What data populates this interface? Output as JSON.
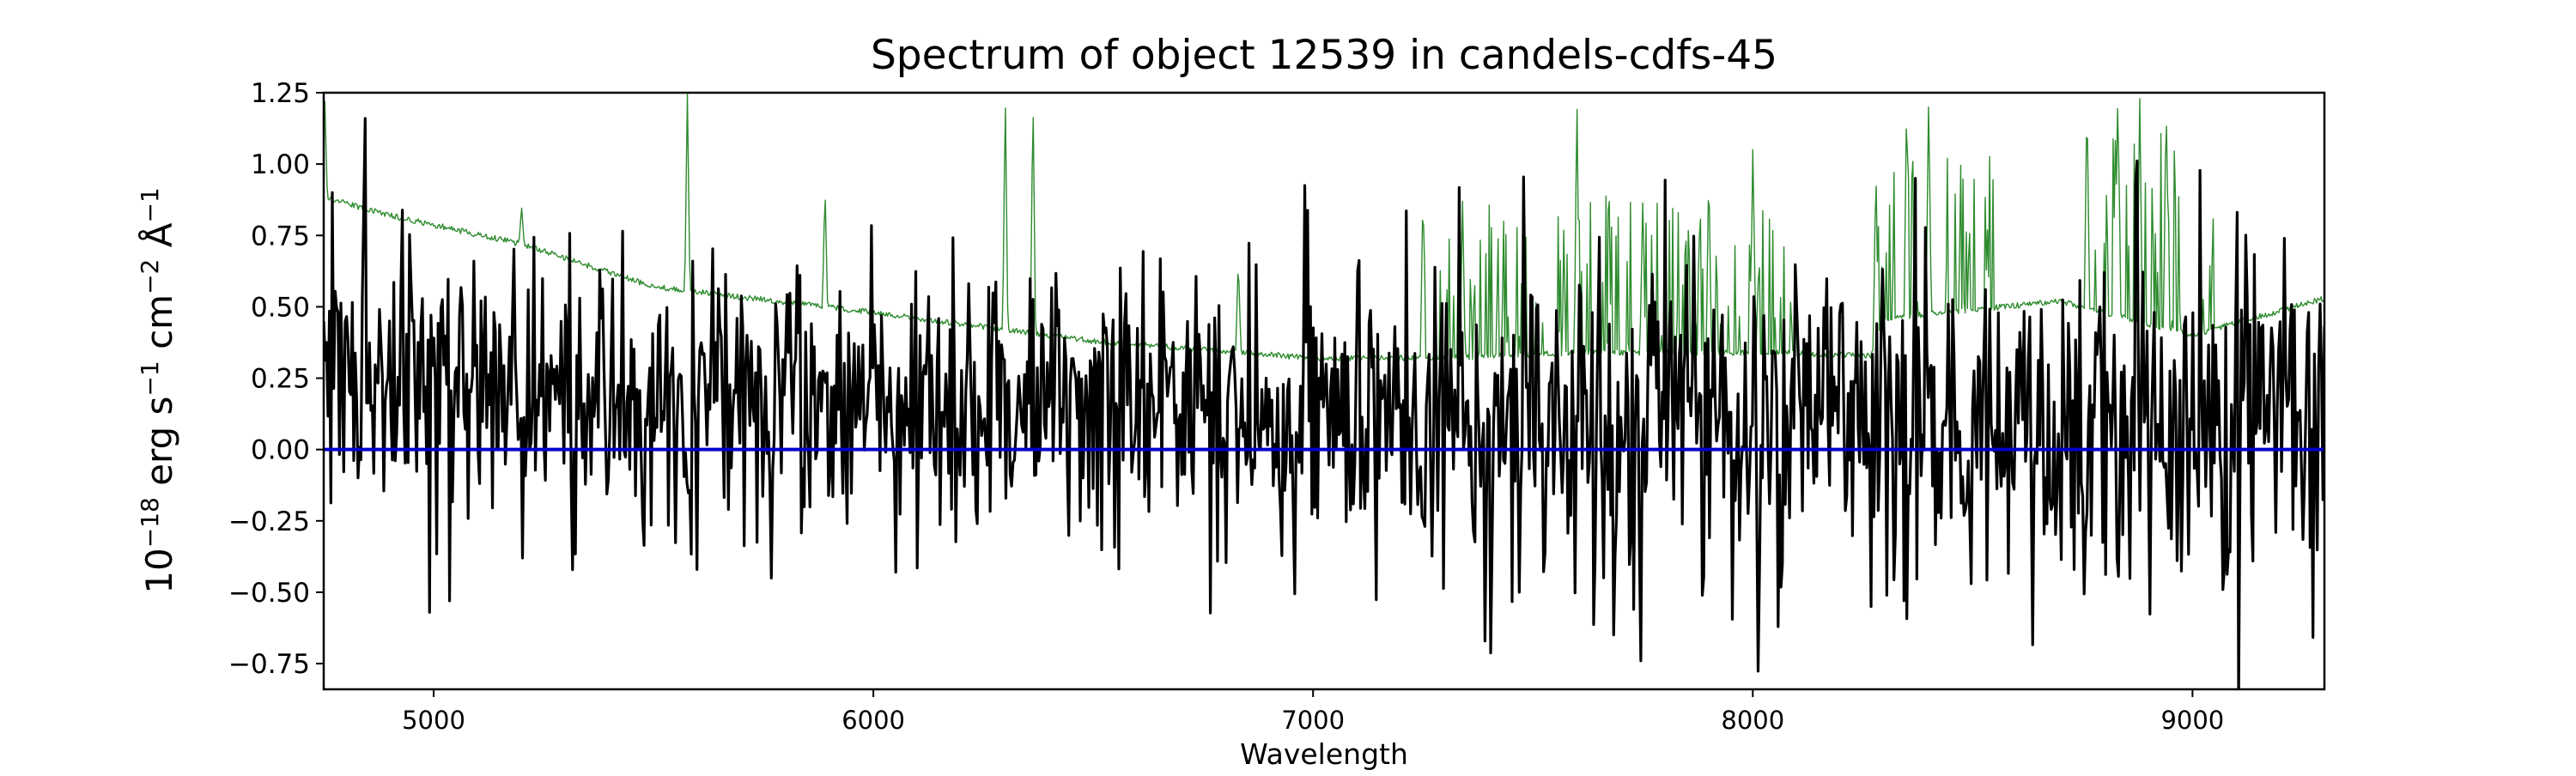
{
  "chart_data": {
    "type": "line",
    "title": "Spectrum of object 12539 in candels-cdfs-45",
    "xlabel": "Wavelength",
    "ylabel_parts": {
      "base": "10",
      "exp": "−18",
      "unit1": " erg s",
      "exp1": "−1",
      "unit2": " cm",
      "exp2": "−2",
      "unit3": " Å",
      "exp3": "−1"
    },
    "xlim": [
      4750,
      9300
    ],
    "ylim": [
      -0.84,
      1.25
    ],
    "x_ticks": [
      5000,
      6000,
      7000,
      8000,
      9000
    ],
    "y_ticks": [
      -0.75,
      -0.5,
      -0.25,
      0.0,
      0.25,
      0.5,
      0.75,
      1.0,
      1.25
    ],
    "x_tick_labels": [
      "5000",
      "6000",
      "7000",
      "8000",
      "9000"
    ],
    "y_tick_labels": [
      "−0.75",
      "−0.50",
      "−0.25",
      "0.00",
      "0.25",
      "0.50",
      "0.75",
      "1.00",
      "1.25"
    ],
    "grid": false,
    "legend": "none",
    "series": [
      {
        "role": "flux",
        "color": "#000000",
        "x_range": [
          4750,
          9300
        ],
        "n_points": 1400,
        "seed": 12539,
        "noise_amplitude": 0.2,
        "noise_red_extra": 0.14,
        "notable_points": [
          [
            4770,
            0.9
          ],
          [
            4840,
            0.85
          ],
          [
            4845,
            1.16
          ],
          [
            4990,
            -0.57
          ],
          [
            5035,
            -0.53
          ],
          [
            5090,
            0.66
          ],
          [
            5590,
            0.66
          ],
          [
            5600,
            -0.42
          ],
          [
            6050,
            -0.43
          ],
          [
            7470,
            -0.5
          ],
          [
            7730,
            -0.56
          ],
          [
            7745,
            -0.74
          ],
          [
            8270,
            -0.55
          ],
          [
            8370,
            0.95
          ],
          [
            8870,
            0.93
          ],
          [
            9210,
            0.74
          ],
          [
            9230,
            -0.28
          ],
          [
            9290,
            0.51
          ]
        ]
      },
      {
        "role": "error",
        "color": "#2e8b2e",
        "x_range": [
          4750,
          9300
        ],
        "n_points": 1800,
        "seed": 45,
        "baseline_knots": [
          [
            4750,
            0.9
          ],
          [
            4760,
            0.88
          ],
          [
            4900,
            0.82
          ],
          [
            5200,
            0.72
          ],
          [
            5500,
            0.57
          ],
          [
            6000,
            0.48
          ],
          [
            6500,
            0.38
          ],
          [
            7000,
            0.32
          ],
          [
            7300,
            0.32
          ],
          [
            7600,
            0.34
          ],
          [
            8000,
            0.34
          ],
          [
            8270,
            0.33
          ],
          [
            8300,
            0.46
          ],
          [
            8700,
            0.52
          ],
          [
            9000,
            0.4
          ],
          [
            9300,
            0.53
          ]
        ],
        "spikes": [
          [
            4752,
            1.25
          ],
          [
            5200,
            0.85
          ],
          [
            5577,
            1.25
          ],
          [
            5890,
            0.92
          ],
          [
            6300,
            1.25
          ],
          [
            6363,
            1.25
          ],
          [
            6830,
            0.67
          ],
          [
            7250,
            0.92
          ],
          [
            7340,
            0.88
          ],
          [
            7600,
            1.25
          ],
          [
            7750,
            0.9
          ],
          [
            7900,
            1.0
          ],
          [
            8000,
            1.05
          ],
          [
            8280,
            1.0
          ],
          [
            8350,
            1.25
          ],
          [
            8400,
            1.25
          ],
          [
            8760,
            1.25
          ],
          [
            8830,
            1.25
          ],
          [
            8880,
            1.25
          ],
          [
            8940,
            1.25
          ]
        ],
        "forest_ranges": [
          [
            7250,
            8100,
            0.55
          ],
          [
            8280,
            8550,
            0.55
          ],
          [
            8750,
            9050,
            0.7
          ]
        ]
      },
      {
        "role": "zero",
        "color": "#0000cc",
        "values": [
          [
            4750,
            0.0
          ],
          [
            9300,
            0.0
          ]
        ]
      }
    ]
  }
}
